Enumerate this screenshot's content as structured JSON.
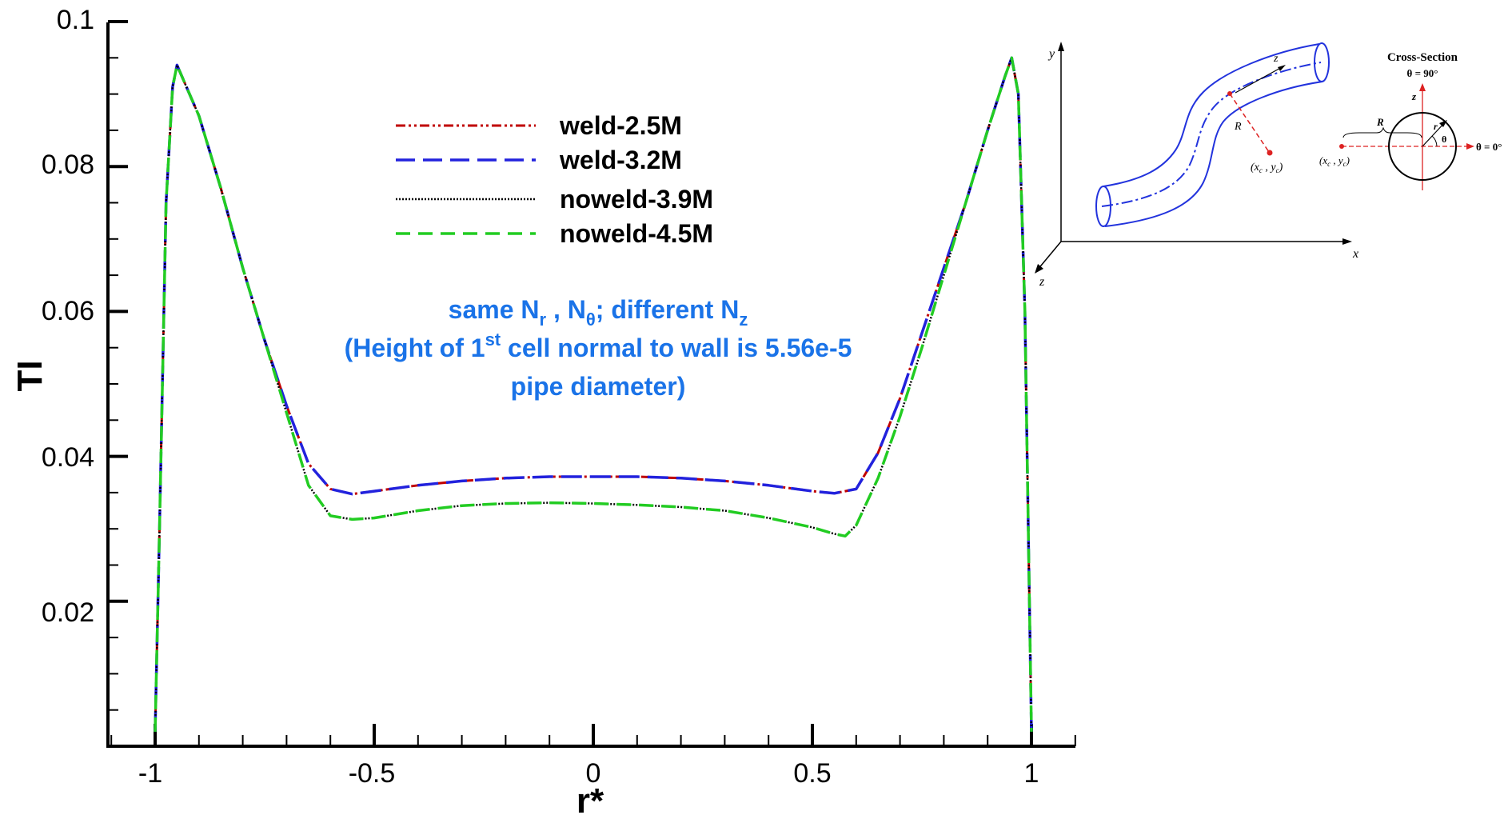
{
  "chart_data": {
    "type": "line",
    "title": "",
    "xlabel": "r*",
    "ylabel": "TI",
    "xlim": [
      -1.1,
      1.1
    ],
    "ylim": [
      0,
      0.1
    ],
    "x_ticks": [
      "-1",
      "-0.5",
      "0",
      "0.5",
      "1"
    ],
    "y_ticks": [
      "0.02",
      "0.04",
      "0.06",
      "0.08",
      "0.1"
    ],
    "grid": false,
    "legend_position": "top-center",
    "series": [
      {
        "name": "weld-2.5M",
        "color": "#c00000",
        "dash": "dash-dot-dot",
        "x": [
          -1.0,
          -0.99,
          -0.975,
          -0.96,
          -0.95,
          -0.9,
          -0.85,
          -0.8,
          -0.75,
          -0.7,
          -0.65,
          -0.6,
          -0.55,
          -0.5,
          -0.4,
          -0.3,
          -0.2,
          -0.1,
          0.0,
          0.1,
          0.2,
          0.3,
          0.4,
          0.5,
          0.55,
          0.6,
          0.65,
          0.7,
          0.75,
          0.8,
          0.85,
          0.9,
          0.94,
          0.955,
          0.97,
          0.985,
          1.0
        ],
        "y": [
          0.002,
          0.03,
          0.075,
          0.091,
          0.094,
          0.087,
          0.077,
          0.066,
          0.056,
          0.047,
          0.039,
          0.0355,
          0.0348,
          0.0352,
          0.036,
          0.0366,
          0.037,
          0.0372,
          0.0372,
          0.0372,
          0.037,
          0.0366,
          0.036,
          0.0352,
          0.0349,
          0.0355,
          0.0405,
          0.048,
          0.057,
          0.066,
          0.075,
          0.085,
          0.0925,
          0.095,
          0.09,
          0.06,
          0.002
        ]
      },
      {
        "name": "weld-3.2M",
        "color": "#2222dd",
        "dash": "long-dash",
        "x": [
          -1.0,
          -0.99,
          -0.975,
          -0.96,
          -0.95,
          -0.9,
          -0.85,
          -0.8,
          -0.75,
          -0.7,
          -0.65,
          -0.6,
          -0.55,
          -0.5,
          -0.4,
          -0.3,
          -0.2,
          -0.1,
          0.0,
          0.1,
          0.2,
          0.3,
          0.4,
          0.5,
          0.55,
          0.6,
          0.65,
          0.7,
          0.75,
          0.8,
          0.85,
          0.9,
          0.94,
          0.955,
          0.97,
          0.985,
          1.0
        ],
        "y": [
          0.002,
          0.03,
          0.075,
          0.091,
          0.094,
          0.087,
          0.077,
          0.066,
          0.056,
          0.047,
          0.039,
          0.0355,
          0.0348,
          0.0352,
          0.036,
          0.0366,
          0.037,
          0.0372,
          0.0372,
          0.0372,
          0.037,
          0.0366,
          0.036,
          0.0352,
          0.0349,
          0.0355,
          0.0405,
          0.048,
          0.057,
          0.066,
          0.075,
          0.085,
          0.0925,
          0.095,
          0.09,
          0.06,
          0.002
        ]
      },
      {
        "name": "noweld-3.9M",
        "color": "#000000",
        "dash": "dotted",
        "x": [
          -1.0,
          -0.99,
          -0.975,
          -0.96,
          -0.95,
          -0.9,
          -0.85,
          -0.8,
          -0.75,
          -0.7,
          -0.65,
          -0.6,
          -0.55,
          -0.5,
          -0.4,
          -0.3,
          -0.2,
          -0.1,
          0.0,
          0.1,
          0.2,
          0.3,
          0.4,
          0.5,
          0.55,
          0.575,
          0.6,
          0.65,
          0.7,
          0.75,
          0.8,
          0.85,
          0.9,
          0.94,
          0.955,
          0.97,
          0.985,
          1.0
        ],
        "y": [
          0.002,
          0.03,
          0.075,
          0.091,
          0.094,
          0.087,
          0.077,
          0.066,
          0.056,
          0.046,
          0.036,
          0.0318,
          0.0313,
          0.0315,
          0.0325,
          0.0332,
          0.0335,
          0.0336,
          0.0335,
          0.0333,
          0.033,
          0.0325,
          0.0315,
          0.0302,
          0.0293,
          0.029,
          0.0305,
          0.037,
          0.0455,
          0.055,
          0.065,
          0.075,
          0.085,
          0.0925,
          0.095,
          0.09,
          0.06,
          0.002
        ]
      },
      {
        "name": "noweld-4.5M",
        "color": "#22cc22",
        "dash": "dashed",
        "x": [
          -1.0,
          -0.99,
          -0.975,
          -0.96,
          -0.95,
          -0.9,
          -0.85,
          -0.8,
          -0.75,
          -0.7,
          -0.65,
          -0.6,
          -0.55,
          -0.5,
          -0.4,
          -0.3,
          -0.2,
          -0.1,
          0.0,
          0.1,
          0.2,
          0.3,
          0.4,
          0.5,
          0.55,
          0.575,
          0.6,
          0.65,
          0.7,
          0.75,
          0.8,
          0.85,
          0.9,
          0.94,
          0.955,
          0.97,
          0.985,
          1.0
        ],
        "y": [
          0.002,
          0.03,
          0.075,
          0.091,
          0.094,
          0.087,
          0.077,
          0.066,
          0.056,
          0.046,
          0.036,
          0.0318,
          0.0313,
          0.0315,
          0.0325,
          0.0332,
          0.0335,
          0.0336,
          0.0335,
          0.0333,
          0.033,
          0.0325,
          0.0315,
          0.0302,
          0.0293,
          0.029,
          0.0305,
          0.037,
          0.0455,
          0.055,
          0.065,
          0.075,
          0.085,
          0.0925,
          0.095,
          0.09,
          0.06,
          0.002
        ]
      }
    ],
    "annotation": {
      "line1_a": "same N",
      "line1_sub_r": "r",
      "line1_b": " , N",
      "line1_sub_theta": "θ",
      "line1_c": "; different N",
      "line1_sub_z": "z",
      "line2_a": "(Height of 1",
      "line2_sup": "st",
      "line2_b": " cell normal to wall is 5.56e-5",
      "line3": "pipe diameter)"
    }
  },
  "inset": {
    "axis_y": "y",
    "axis_x": "x",
    "axis_z": "z",
    "pipe_z": "z",
    "radius": "R",
    "center_x": "x",
    "center_sub_c1": "c",
    "center_y": "y",
    "center_sub_c2": "c",
    "cs_title": "Cross-Section",
    "cs_theta90": "θ = 90°",
    "cs_theta0": "θ = 0°",
    "cs_z": "z",
    "cs_r": "r",
    "cs_theta": "θ",
    "cs_R": "R"
  }
}
